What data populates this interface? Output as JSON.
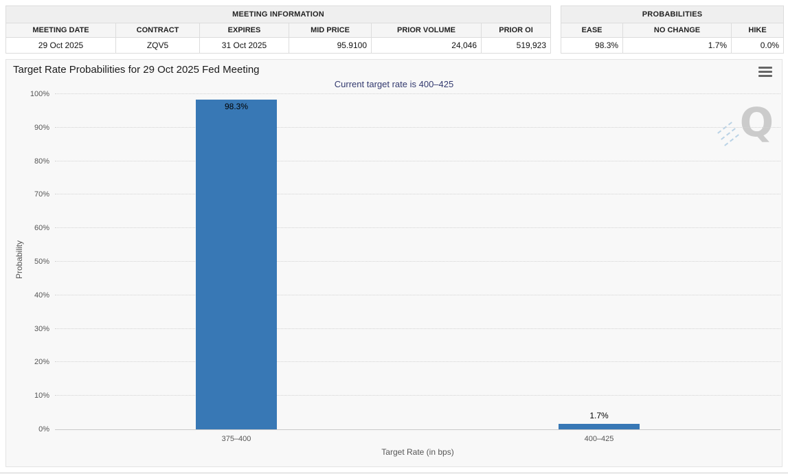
{
  "meeting_info": {
    "title": "MEETING INFORMATION",
    "columns": [
      "MEETING DATE",
      "CONTRACT",
      "EXPIRES",
      "MID PRICE",
      "PRIOR VOLUME",
      "PRIOR OI"
    ],
    "row": [
      "29 Oct 2025",
      "ZQV5",
      "31 Oct 2025",
      "95.9100",
      "24,046",
      "519,923"
    ]
  },
  "probabilities_table": {
    "title": "PROBABILITIES",
    "columns": [
      "EASE",
      "NO CHANGE",
      "HIKE"
    ],
    "row": [
      "98.3%",
      "1.7%",
      "0.0%"
    ]
  },
  "chart": {
    "title": "Target Rate Probabilities for 29 Oct 2025 Fed Meeting",
    "subtitle": "Current target rate is 400–425",
    "watermark_letter": "Q"
  },
  "chart_data": {
    "type": "bar",
    "title": "Target Rate Probabilities for 29 Oct 2025 Fed Meeting",
    "subtitle": "Current target rate is 400–425",
    "categories": [
      "375–400",
      "400–425"
    ],
    "values": [
      98.3,
      1.7
    ],
    "value_labels": [
      "98.3%",
      "1.7%"
    ],
    "xlabel": "Target Rate (in bps)",
    "ylabel": "Probability",
    "ylim": [
      0,
      100
    ],
    "ytick_step": 10,
    "yticks": [
      "0%",
      "10%",
      "20%",
      "30%",
      "40%",
      "50%",
      "60%",
      "70%",
      "80%",
      "90%",
      "100%"
    ],
    "grid": "dotted horizontal",
    "legend": "none",
    "bar_color": "#3878b5"
  },
  "icons": {
    "menu": "hamburger-menu-icon",
    "watermark": "quikstrike-q-logo"
  },
  "colors": {
    "bar": "#3878b5",
    "subtitle_text": "#32396e",
    "panel_bg": "#f8f8f8",
    "table_header_bg": "#efefef",
    "grid_line": "#d2d2d2"
  }
}
